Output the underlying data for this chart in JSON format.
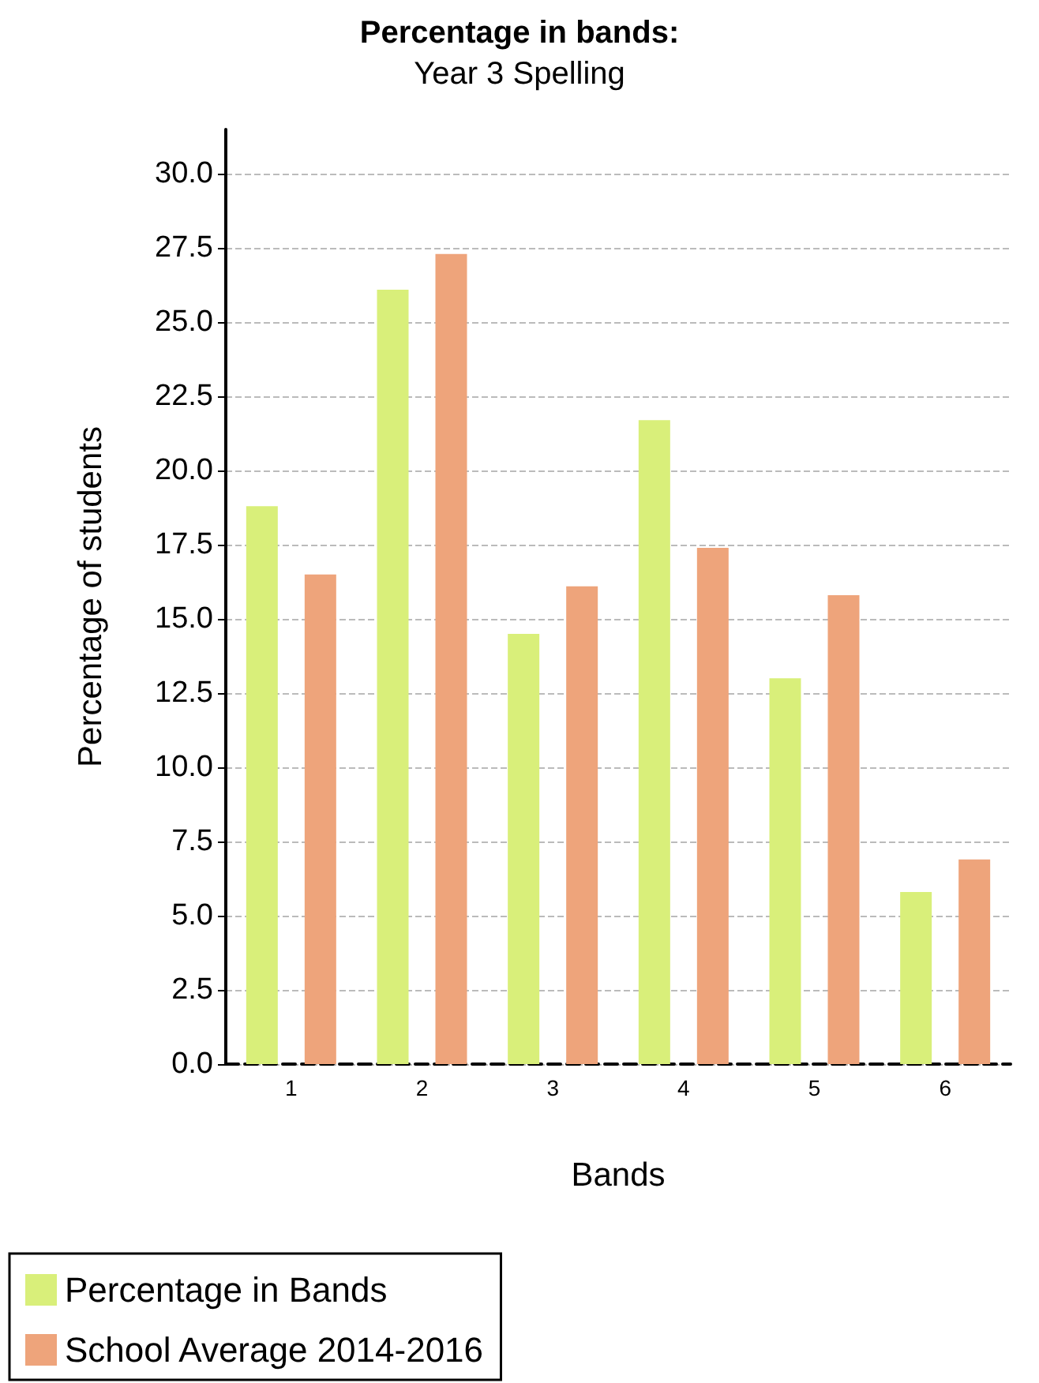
{
  "chart_data": {
    "type": "bar",
    "title": "Percentage in bands:",
    "subtitle": "Year 3 Spelling",
    "xlabel": "Bands",
    "ylabel": "Percentage of students",
    "categories": [
      "1",
      "2",
      "3",
      "4",
      "5",
      "6"
    ],
    "series": [
      {
        "name": "Percentage in Bands",
        "color": "#d9ef7a",
        "values": [
          18.8,
          26.1,
          14.5,
          21.7,
          13.0,
          5.8
        ]
      },
      {
        "name": "School Average 2014-2016",
        "color": "#eea47b",
        "values": [
          16.5,
          27.3,
          16.1,
          17.4,
          15.8,
          6.9
        ]
      }
    ],
    "ylim": [
      0,
      31.5
    ],
    "yticks": [
      {
        "value": 0,
        "label": "0.0"
      },
      {
        "value": 2.5,
        "label": "2.5"
      },
      {
        "value": 5,
        "label": "5.0"
      },
      {
        "value": 7.5,
        "label": "7.5"
      },
      {
        "value": 10,
        "label": "10.0"
      },
      {
        "value": 12.5,
        "label": "12.5"
      },
      {
        "value": 15,
        "label": "15.0"
      },
      {
        "value": 17.5,
        "label": "17.5"
      },
      {
        "value": 20,
        "label": "20.0"
      },
      {
        "value": 22.5,
        "label": "22.5"
      },
      {
        "value": 25,
        "label": "25.0"
      },
      {
        "value": 27.5,
        "label": "27.5"
      },
      {
        "value": 30,
        "label": "30.0"
      }
    ],
    "grid": "y",
    "legend": "bottom"
  }
}
